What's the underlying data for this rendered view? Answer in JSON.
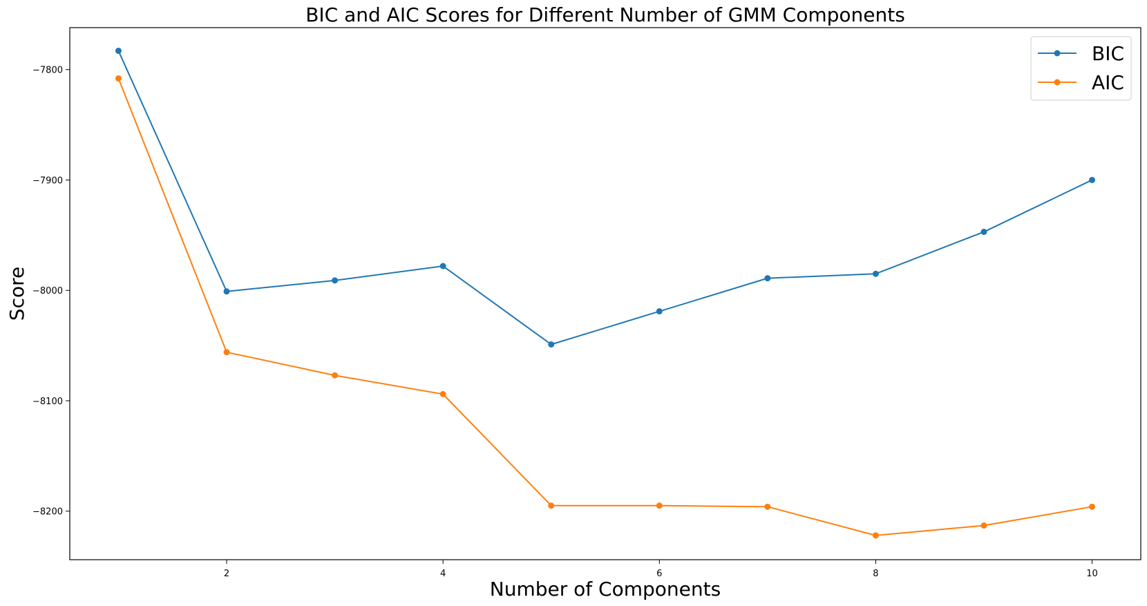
{
  "chart_data": {
    "type": "line",
    "title": "BIC and AIC Scores for Different Number of GMM Components",
    "xlabel": "Number of Components",
    "ylabel": "Score",
    "xlim": [
      0.55,
      10.45
    ],
    "ylim": [
      -8244,
      -7762
    ],
    "x": [
      1,
      2,
      3,
      4,
      5,
      6,
      7,
      8,
      9,
      10
    ],
    "xticks": [
      2,
      4,
      6,
      8,
      10
    ],
    "xtick_labels": [
      "2",
      "4",
      "6",
      "8",
      "10"
    ],
    "yticks": [
      -7800,
      -7900,
      -8000,
      -8100,
      -8200
    ],
    "ytick_labels": [
      "−7800",
      "−7900",
      "−8000",
      "−8100",
      "−8200"
    ],
    "grid": false,
    "legend_position": "top-right",
    "series": [
      {
        "name": "BIC",
        "color": "#1f77b4",
        "marker": "circle",
        "values": [
          -7783,
          -8001,
          -7991,
          -7978,
          -8049,
          -8019,
          -7989,
          -7985,
          -7947,
          -7900
        ]
      },
      {
        "name": "AIC",
        "color": "#ff7f0e",
        "marker": "circle",
        "values": [
          -7808,
          -8056,
          -8077,
          -8094,
          -8195,
          -8195,
          -8196,
          -8222,
          -8213,
          -8196
        ]
      }
    ]
  }
}
